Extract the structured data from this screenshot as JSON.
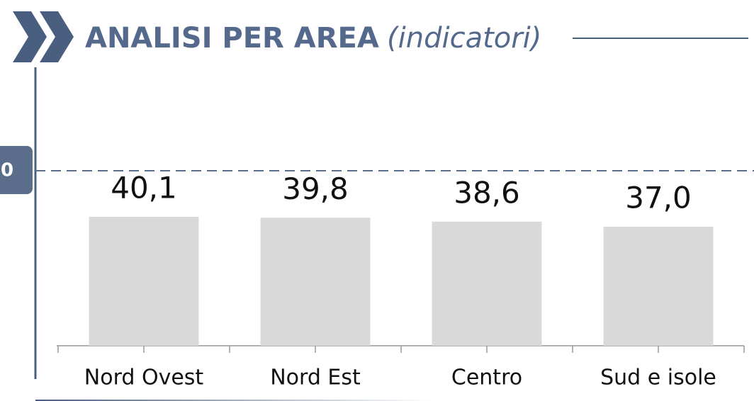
{
  "chart_data": {
    "type": "bar",
    "title": "ANALISI PER AREA",
    "subtitle": "(indicatori)",
    "reference_label": "0",
    "categories": [
      "Nord Ovest",
      "Nord Est",
      "Centro",
      "Sud e isole"
    ],
    "values": [
      40.1,
      39.8,
      38.6,
      37.0
    ],
    "value_labels": [
      "40,1",
      "39,8",
      "38,6",
      "37,0"
    ],
    "color": "#d9d9d9",
    "ylim": [
      0,
      100
    ]
  }
}
